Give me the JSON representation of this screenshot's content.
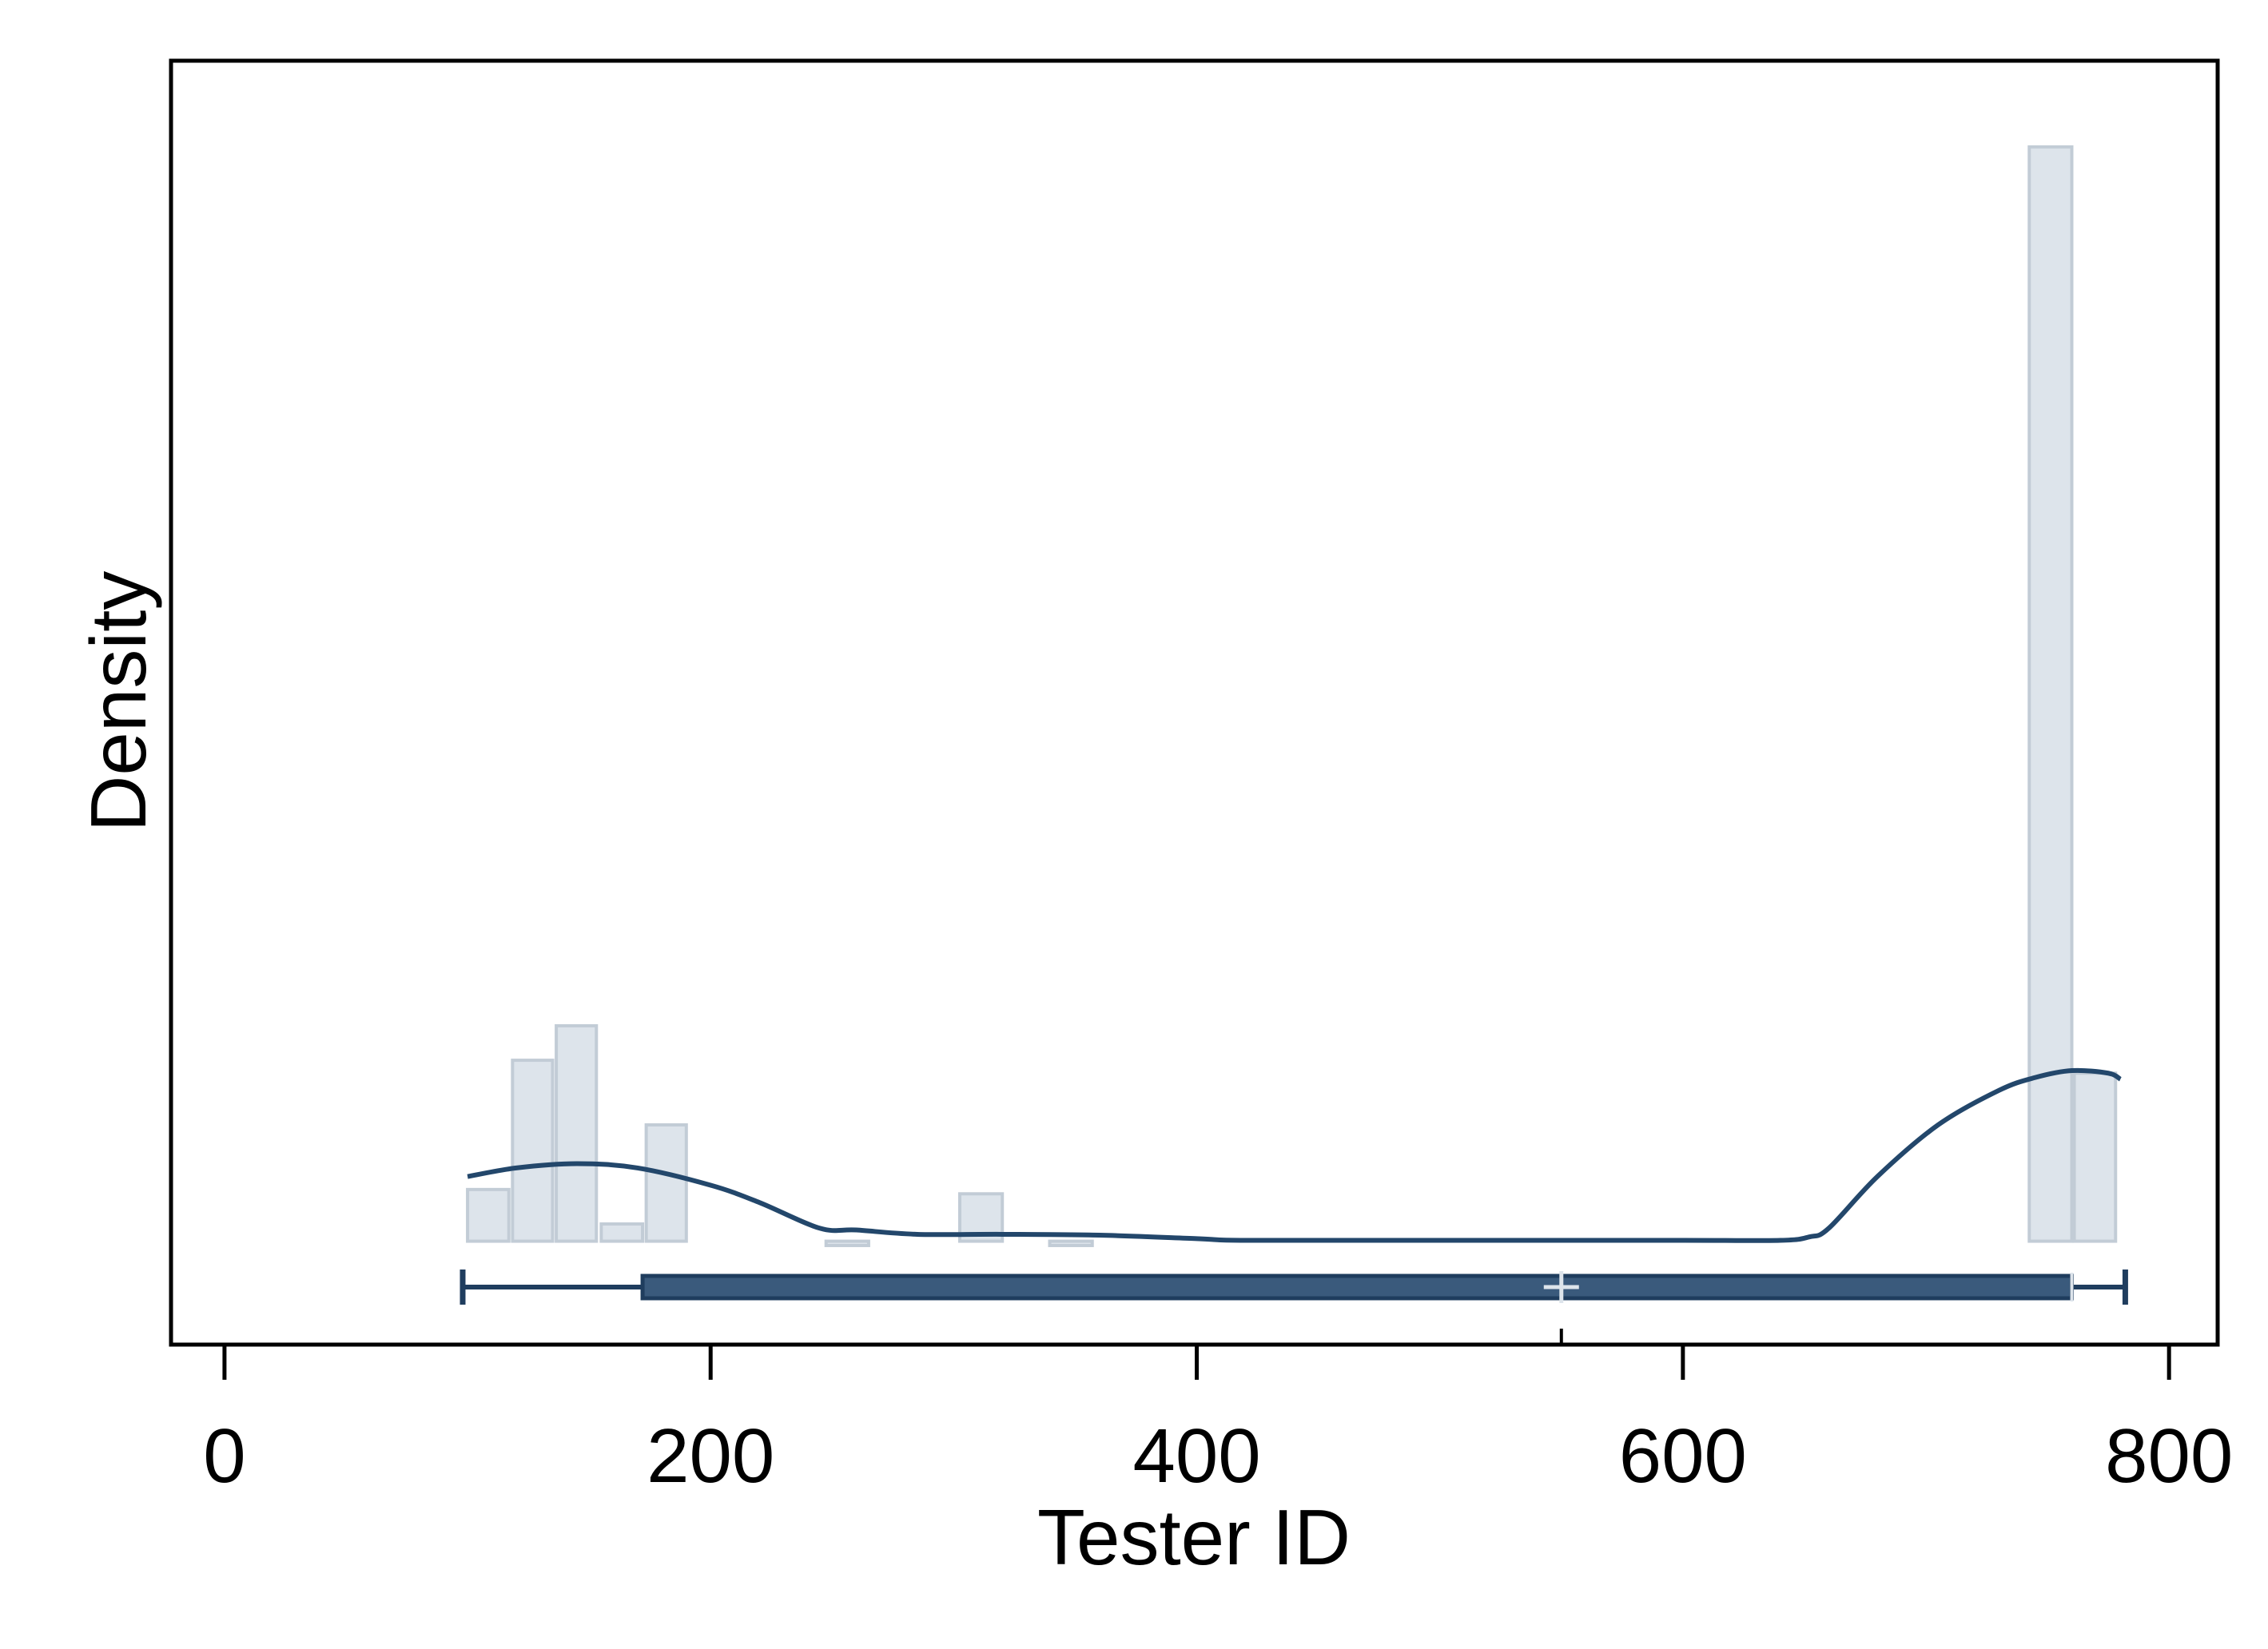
{
  "chart_data": {
    "type": "histogram",
    "xlabel": "Tester ID",
    "ylabel": "Density",
    "xlim": [
      -22,
      820
    ],
    "x_ticks": [
      0,
      200,
      400,
      600,
      800
    ],
    "x_tick_labels": [
      "0",
      "200",
      "400",
      "600",
      "800"
    ],
    "y_ticks_shown": false,
    "grid": false,
    "bin_width": 18.3,
    "histogram_bars": [
      {
        "x0": 100,
        "x1": 117,
        "density": 0.0006
      },
      {
        "x0": 118.5,
        "x1": 135,
        "density": 0.0021
      },
      {
        "x0": 136.5,
        "x1": 153,
        "density": 0.0025
      },
      {
        "x0": 155,
        "x1": 172,
        "density": 0.0002
      },
      {
        "x0": 173.5,
        "x1": 190,
        "density": 0.00135
      },
      {
        "x0": 247.5,
        "x1": 265,
        "density": -5e-05
      },
      {
        "x0": 302.5,
        "x1": 320,
        "density": 0.00055
      },
      {
        "x0": 339.5,
        "x1": 357,
        "density": -5e-05
      },
      {
        "x0": 742.5,
        "x1": 760,
        "density": 0.0127
      },
      {
        "x0": 761,
        "x1": 778,
        "density": 0.00195
      }
    ],
    "density_curve": {
      "x": [
        100,
        120,
        145,
        170,
        200,
        220,
        245,
        260,
        285,
        320,
        360,
        400,
        420,
        500,
        600,
        640,
        652,
        660,
        680,
        705,
        730,
        745,
        760,
        775,
        780
      ],
      "y": [
        0.00075,
        0.00085,
        0.0009,
        0.00085,
        0.00065,
        0.00045,
        0.00015,
        0.00013,
        8e-05,
        8e-05,
        7e-05,
        3e-05,
        1e-05,
        1e-05,
        1e-05,
        1e-05,
        5e-05,
        0.00015,
        0.00075,
        0.00135,
        0.00175,
        0.0019,
        0.00198,
        0.00195,
        0.00188
      ]
    },
    "box_plot": {
      "min": 98,
      "q1": 172,
      "median": 760,
      "q3": 760,
      "max": 782,
      "mean": 550
    },
    "ylim": [
      -0.0012,
      0.0137
    ],
    "colors": {
      "bar_fill": "#dde4eb",
      "bar_stroke": "#c2ccd6",
      "curve": "#23476b",
      "box_fill": "#3a5a7c",
      "box_stroke": "#1f3d5e",
      "mean_marker": "#dde4eb"
    }
  }
}
